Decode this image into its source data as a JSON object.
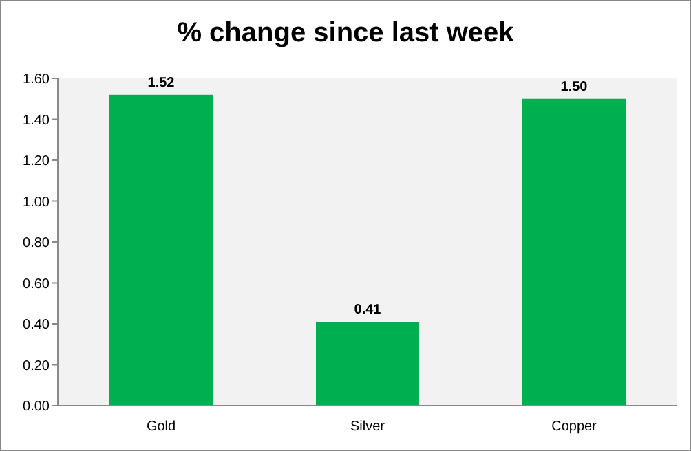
{
  "chart_data": {
    "type": "bar",
    "title": "% change since last week",
    "categories": [
      "Gold",
      "Silver",
      "Copper"
    ],
    "values": [
      1.52,
      0.41,
      1.5
    ],
    "value_labels": [
      "1.52",
      "0.41",
      "1.50"
    ],
    "color": "#00b050",
    "ylim": [
      0,
      1.6
    ],
    "yticks": [
      {
        "value": 0,
        "label": "0.00"
      },
      {
        "value": 0.2,
        "label": "0.20"
      },
      {
        "value": 0.4,
        "label": "0.40"
      },
      {
        "value": 0.6,
        "label": "0.60"
      },
      {
        "value": 0.8,
        "label": "0.80"
      },
      {
        "value": 1,
        "label": "1.00"
      },
      {
        "value": 1.2,
        "label": "1.20"
      },
      {
        "value": 1.4,
        "label": "1.40"
      },
      {
        "value": 1.6,
        "label": "1.60"
      }
    ],
    "grid": false
  }
}
